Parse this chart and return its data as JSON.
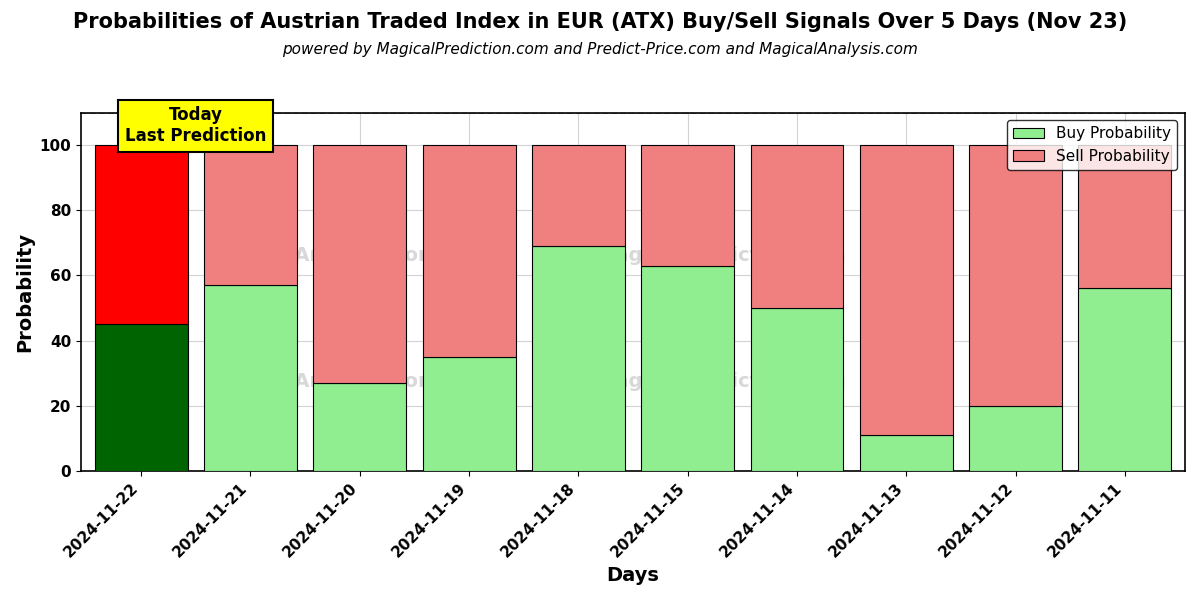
{
  "title": "Probabilities of Austrian Traded Index in EUR (ATX) Buy/Sell Signals Over 5 Days (Nov 23)",
  "subtitle": "powered by MagicalPrediction.com and Predict-Price.com and MagicalAnalysis.com",
  "xlabel": "Days",
  "ylabel": "Probability",
  "dates": [
    "2024-11-22",
    "2024-11-21",
    "2024-11-20",
    "2024-11-19",
    "2024-11-18",
    "2024-11-15",
    "2024-11-14",
    "2024-11-13",
    "2024-11-12",
    "2024-11-11"
  ],
  "buy_values": [
    45,
    57,
    27,
    35,
    69,
    63,
    50,
    11,
    20,
    56
  ],
  "sell_values": [
    55,
    43,
    73,
    65,
    31,
    37,
    50,
    89,
    80,
    44
  ],
  "today_buy_color": "#006400",
  "today_sell_color": "#FF0000",
  "buy_color": "#90EE90",
  "sell_color": "#F08080",
  "today_label_bg": "#FFFF00",
  "today_label_text": "Today\nLast Prediction",
  "legend_buy": "Buy Probability",
  "legend_sell": "Sell Probability",
  "ylim": [
    0,
    110
  ],
  "yticks": [
    0,
    20,
    40,
    60,
    80,
    100
  ],
  "dashed_line_y": 110,
  "bar_width": 0.85,
  "title_fontsize": 15,
  "subtitle_fontsize": 11,
  "axis_label_fontsize": 14,
  "tick_fontsize": 11,
  "legend_fontsize": 11,
  "plot_bg": "#ffffff",
  "fig_bg": "#ffffff"
}
